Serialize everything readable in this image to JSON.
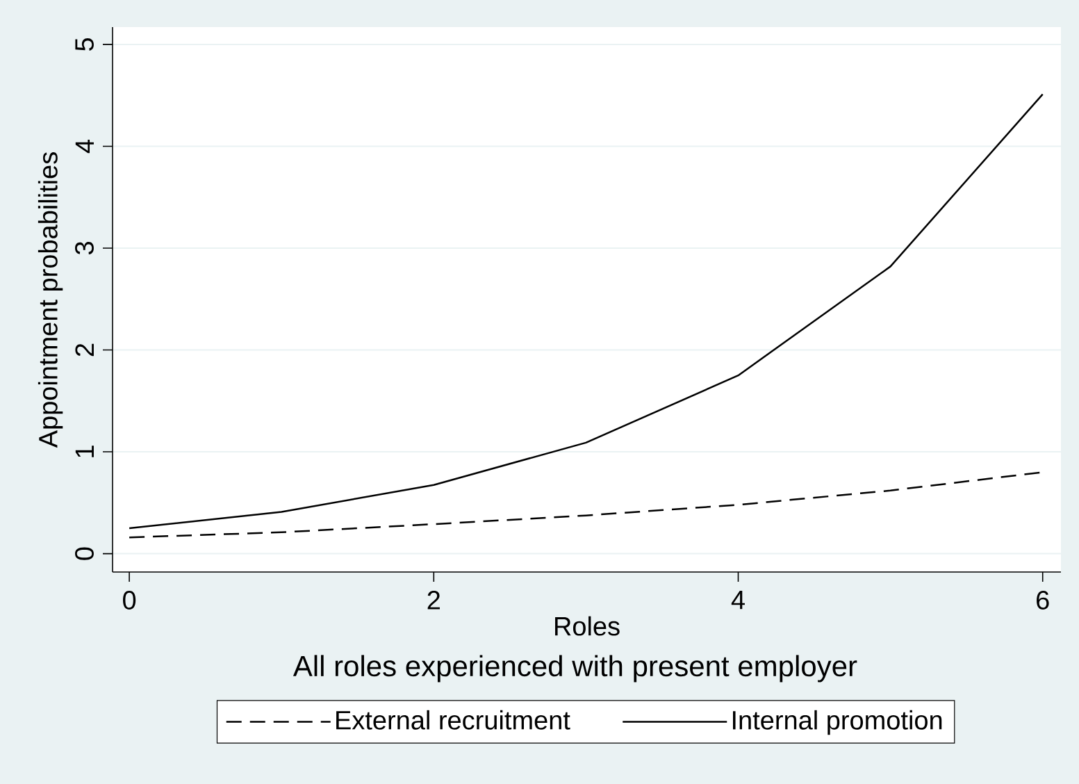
{
  "chart_data": {
    "type": "line",
    "title": "All roles experienced with present employer",
    "xlabel": "Roles",
    "ylabel": "Appointment probabilities",
    "x": [
      0,
      1,
      2,
      3,
      4,
      5,
      6
    ],
    "series": [
      {
        "name": "External recruitment",
        "color": "#000000",
        "line_style": "dashed",
        "values": [
          0.16,
          0.21,
          0.29,
          0.375,
          0.48,
          0.62,
          0.8
        ]
      },
      {
        "name": "Internal promotion",
        "color": "#000000",
        "line_style": "solid",
        "values": [
          0.25,
          0.41,
          0.675,
          1.09,
          1.75,
          2.82,
          4.51
        ]
      }
    ],
    "xlim": [
      -0.11,
      6.12
    ],
    "ylim": [
      -0.18,
      5.17
    ],
    "xticks": [
      0,
      2,
      4,
      6
    ],
    "yticks": [
      0,
      1,
      2,
      3,
      4,
      5
    ],
    "grid": "y",
    "legend": "bottom",
    "marker": "none"
  }
}
